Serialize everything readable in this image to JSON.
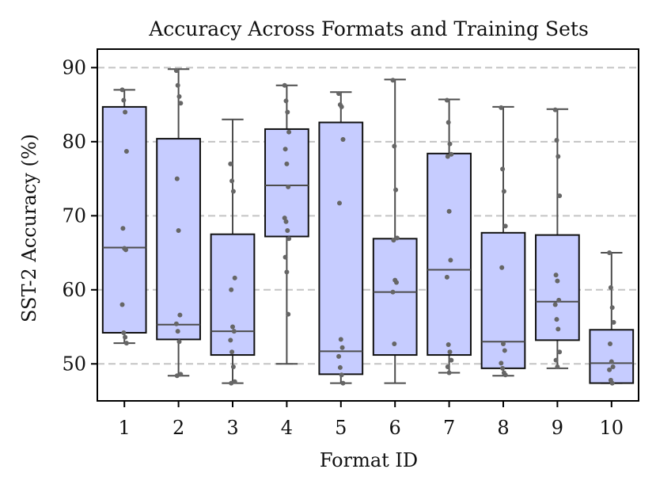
{
  "chart_data": {
    "type": "box",
    "title": "Accuracy Across Formats and Training Sets",
    "xlabel": "Format ID",
    "ylabel": "SST-2 Accuracy (%)",
    "ylim": [
      45,
      92.5
    ],
    "yticks": [
      50,
      60,
      70,
      80,
      90
    ],
    "grid": "horizontal-dashed",
    "box_color": "#c6ccff",
    "point_color": "#666666",
    "categories": [
      "1",
      "2",
      "3",
      "4",
      "5",
      "6",
      "7",
      "8",
      "9",
      "10"
    ],
    "boxes": [
      {
        "category": "1",
        "whisker_low": 52.8,
        "q1": 54.2,
        "median": 65.7,
        "q3": 84.7,
        "whisker_high": 87.0,
        "points": [
          87.0,
          85.6,
          84.0,
          78.7,
          68.3,
          65.6,
          65.4,
          58.0,
          54.2,
          53.6,
          52.8
        ]
      },
      {
        "category": "2",
        "whisker_low": 48.4,
        "q1": 53.3,
        "median": 55.3,
        "q3": 80.4,
        "whisker_high": 89.8,
        "points": [
          89.6,
          87.6,
          86.1,
          85.2,
          75.0,
          68.0,
          56.6,
          55.4,
          54.4,
          53.0,
          48.6,
          48.4
        ]
      },
      {
        "category": "3",
        "whisker_low": 47.4,
        "q1": 51.2,
        "median": 54.4,
        "q3": 67.5,
        "whisker_high": 83.0,
        "points": [
          77.0,
          74.7,
          73.3,
          61.6,
          60.0,
          55.0,
          54.4,
          53.2,
          51.6,
          49.6,
          47.6,
          47.4
        ]
      },
      {
        "category": "4",
        "whisker_low": 50.0,
        "q1": 67.2,
        "median": 74.1,
        "q3": 81.7,
        "whisker_high": 87.6,
        "points": [
          87.6,
          85.5,
          84.0,
          81.3,
          79.0,
          77.0,
          73.9,
          69.7,
          69.2,
          68.0,
          66.9,
          64.4,
          62.4,
          56.7
        ]
      },
      {
        "category": "5",
        "whisker_low": 47.4,
        "q1": 48.6,
        "median": 51.7,
        "q3": 82.6,
        "whisker_high": 86.7,
        "points": [
          86.5,
          85.0,
          84.7,
          80.3,
          71.7,
          53.3,
          52.2,
          51.0,
          49.5,
          48.5,
          47.4
        ]
      },
      {
        "category": "6",
        "whisker_low": 47.4,
        "q1": 51.2,
        "median": 59.7,
        "q3": 66.9,
        "whisker_high": 88.4,
        "points": [
          88.3,
          79.4,
          73.5,
          67.0,
          66.7,
          61.3,
          61.0,
          59.7,
          52.7
        ]
      },
      {
        "category": "7",
        "whisker_low": 48.8,
        "q1": 51.2,
        "median": 62.7,
        "q3": 78.4,
        "whisker_high": 85.7,
        "points": [
          85.6,
          82.6,
          79.7,
          78.3,
          78.0,
          70.6,
          64.0,
          61.7,
          52.6,
          51.6,
          50.5,
          49.6,
          48.8
        ]
      },
      {
        "category": "8",
        "whisker_low": 48.4,
        "q1": 49.4,
        "median": 53.0,
        "q3": 67.7,
        "whisker_high": 84.7,
        "points": [
          84.6,
          76.3,
          73.3,
          68.6,
          63.0,
          52.7,
          51.8,
          50.1,
          49.4,
          48.8,
          48.5
        ]
      },
      {
        "category": "9",
        "whisker_low": 49.4,
        "q1": 53.2,
        "median": 58.4,
        "q3": 67.4,
        "whisker_high": 84.4,
        "points": [
          84.3,
          80.2,
          78.0,
          72.7,
          62.0,
          61.2,
          58.6,
          58.0,
          56.0,
          54.7,
          51.6,
          50.5,
          49.6
        ]
      },
      {
        "category": "10",
        "whisker_low": 47.4,
        "q1": 47.4,
        "median": 50.1,
        "q3": 54.6,
        "whisker_high": 65.0,
        "points": [
          65.0,
          60.3,
          57.6,
          55.6,
          52.7,
          50.3,
          49.6,
          49.2,
          47.8,
          47.4
        ]
      }
    ]
  }
}
